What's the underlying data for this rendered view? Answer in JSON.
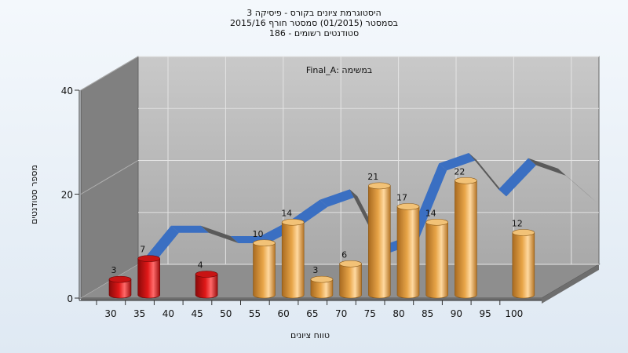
{
  "chart_data": {
    "type": "bar",
    "title_lines": [
      "היסטוגרמת ציונים בקורס - פיסיקה 3",
      "בסמסטר  (01/2015)  סמסטר חורף 2015/16",
      "סטודנטים רשומים - 186"
    ],
    "annotation": "במשימה :Final_A",
    "xlabel": "טווח ציונים",
    "ylabel": "מספר סטודנטים",
    "ylim": [
      0,
      40
    ],
    "yticks": [
      0,
      20,
      40
    ],
    "grid": true,
    "categories": [
      "30",
      "35",
      "40",
      "45",
      "50",
      "55",
      "60",
      "65",
      "70",
      "75",
      "80",
      "85",
      "90",
      "95",
      "100"
    ],
    "values": [
      3,
      7,
      null,
      4,
      null,
      10,
      14,
      3,
      6,
      21,
      17,
      14,
      22,
      null,
      12
    ],
    "fail_color": "#e01818",
    "pass_color": "#e8a548",
    "trend_color_up": "#3a6fc2",
    "trend_color_down": "#5a5a5a",
    "trend": [
      3,
      10,
      10,
      8,
      8,
      11,
      15,
      17,
      6,
      8,
      22,
      24,
      17,
      23,
      21,
      16
    ]
  }
}
